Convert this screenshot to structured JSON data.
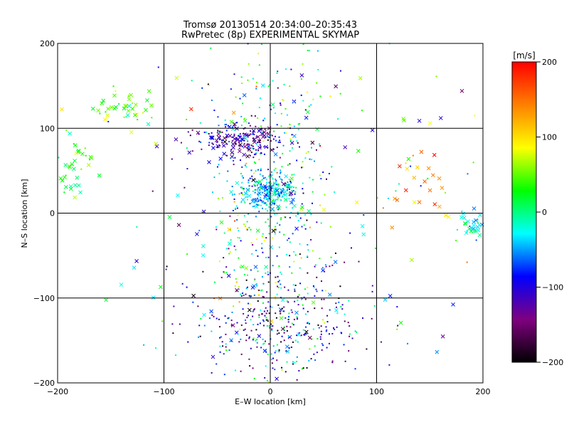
{
  "chart_data": {
    "type": "scatter",
    "title": "Tromsø 20130514 20:34:00–20:35:43",
    "subtitle": "RwPretec (8p) EXPERIMENTAL SKYMAP",
    "xlabel": "E–W location [km]",
    "ylabel": "N–S location [km]",
    "xlim": [
      -200,
      200
    ],
    "ylim": [
      -200,
      200
    ],
    "xticks": [
      -200,
      -100,
      0,
      100,
      200
    ],
    "yticks": [
      -200,
      -100,
      0,
      100,
      200
    ],
    "grid": true,
    "colorbar": {
      "label": "[m/s]",
      "range": [
        -200,
        200
      ],
      "ticks": [
        200,
        100,
        0,
        -100,
        -200
      ],
      "colors": [
        "#000000",
        "#800080",
        "#0000ff",
        "#00ffff",
        "#00ff00",
        "#ffff00",
        "#ff8000",
        "#ff0000"
      ]
    },
    "marker_types": [
      "dot",
      "cross"
    ]
  }
}
